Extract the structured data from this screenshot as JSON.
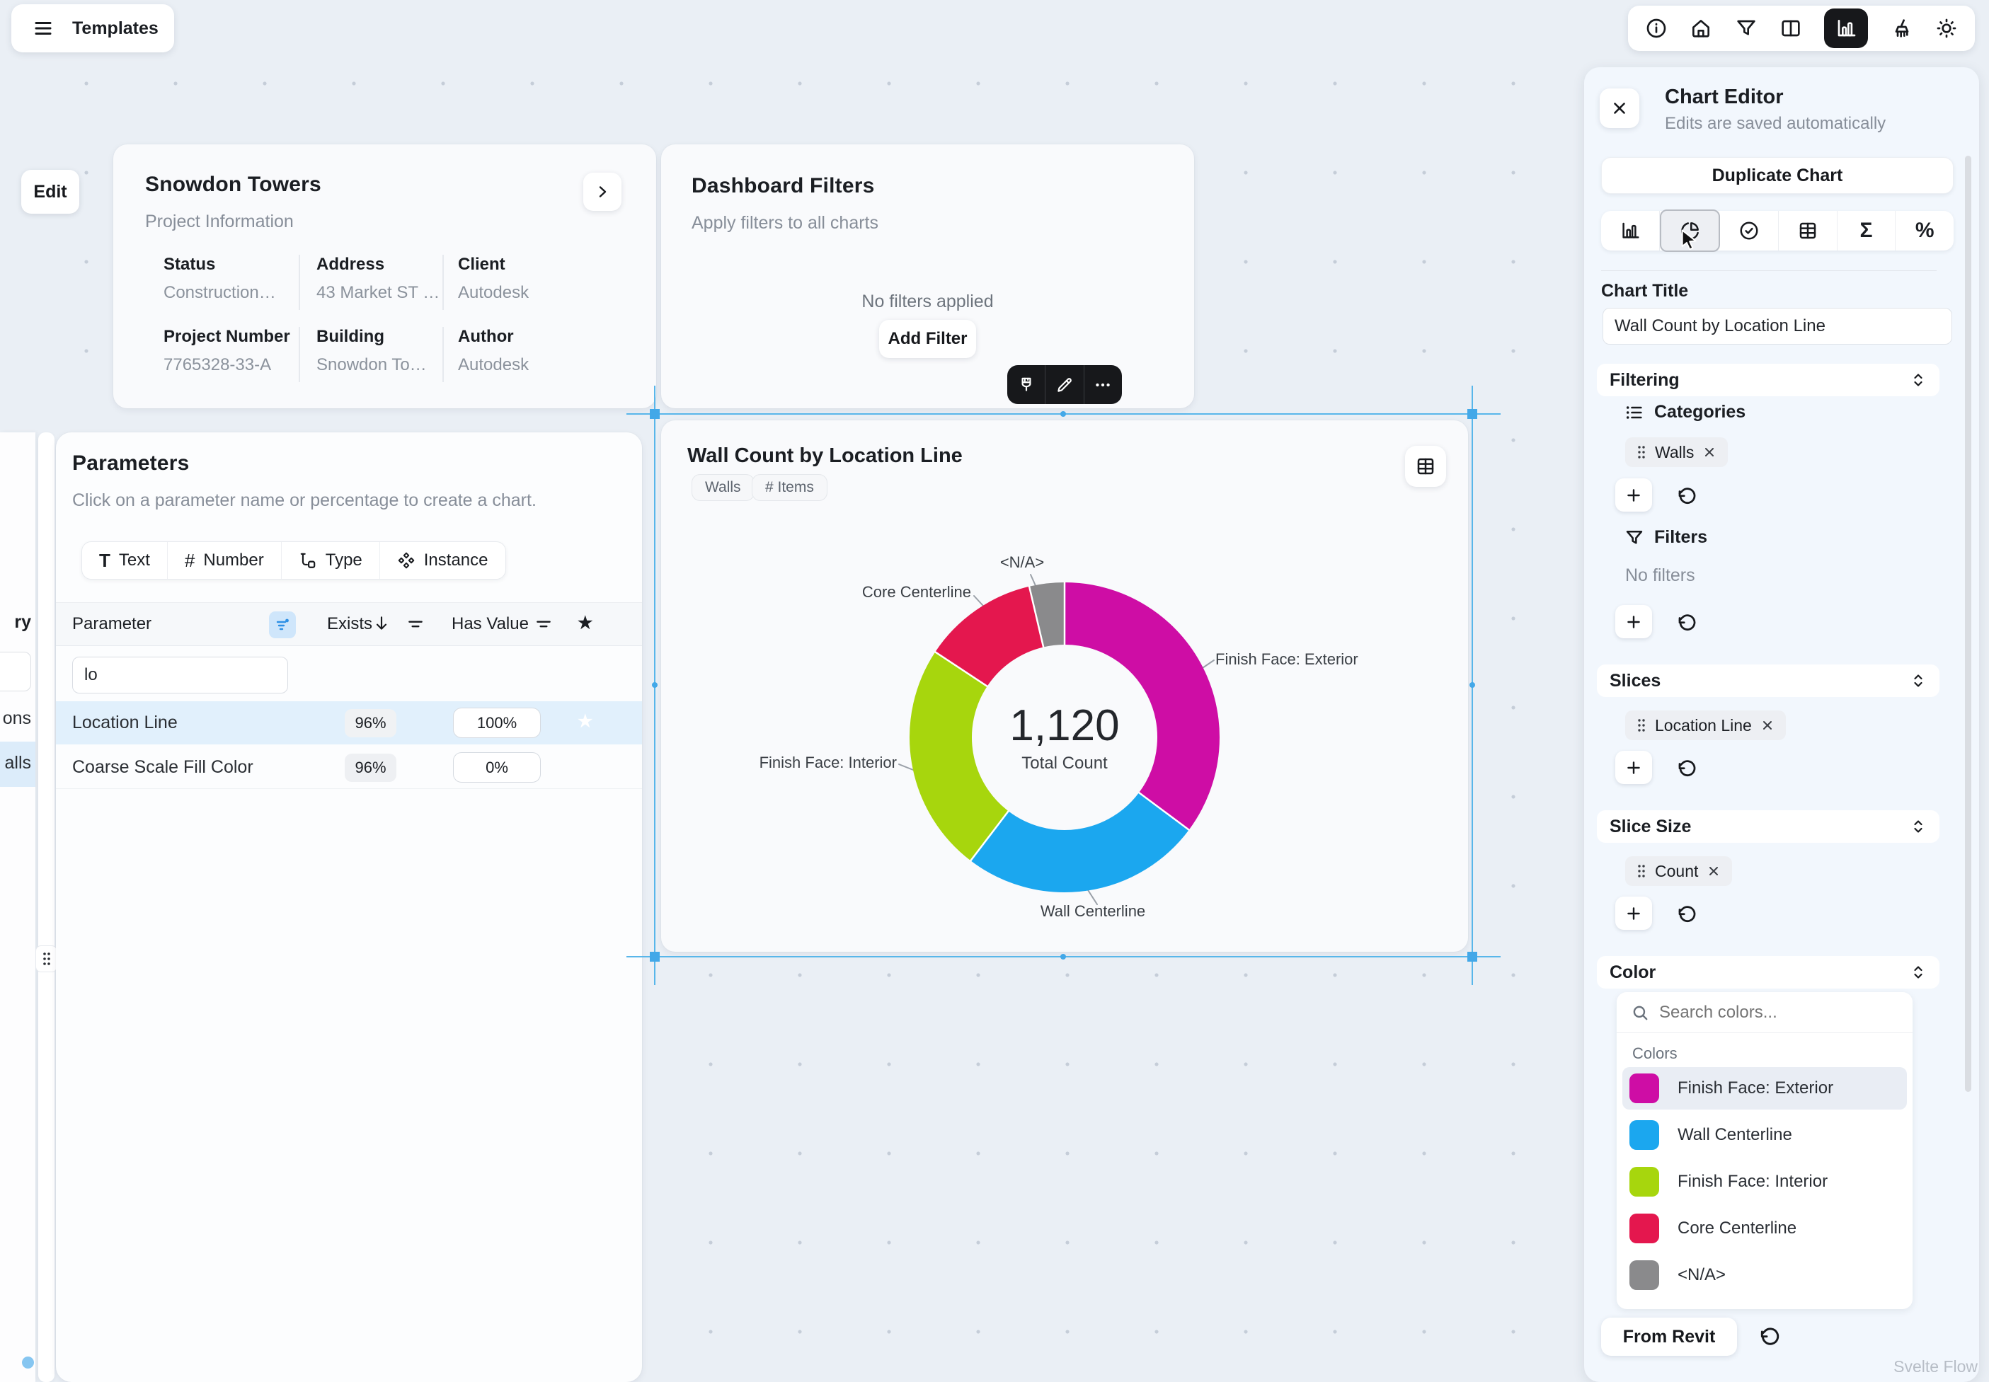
{
  "topbar": {
    "menu_label": "Templates",
    "right_icons": [
      "info-icon",
      "home-icon",
      "filter-icon",
      "columns-icon",
      "chart-icon",
      "broom-icon",
      "sun-icon"
    ],
    "active_icon": "chart-icon"
  },
  "canvas": {
    "edit_button_label": "Edit",
    "watermark": "Svelte Flow",
    "selection_color": "#58B6EA"
  },
  "project_card": {
    "title": "Snowdon Towers",
    "subtitle": "Project Information",
    "fields": [
      {
        "label": "Status",
        "value": "Construction…"
      },
      {
        "label": "Address",
        "value": "43 Market ST …"
      },
      {
        "label": "Client",
        "value": "Autodesk"
      },
      {
        "label": "Project Number",
        "value": "7765328-33-A"
      },
      {
        "label": "Building",
        "value": "Snowdon To…"
      },
      {
        "label": "Author",
        "value": "Autodesk"
      }
    ]
  },
  "filters_card": {
    "title": "Dashboard Filters",
    "subtitle": "Apply filters to all charts",
    "empty_text": "No filters applied",
    "add_button_label": "Add Filter",
    "toolbar_icons": [
      "paint-brush-icon",
      "pencil-icon",
      "ellipsis-icon"
    ]
  },
  "left_strip": {
    "header_fragment": "ry",
    "row_fragments": [
      "ons",
      "alls"
    ]
  },
  "parameters_panel": {
    "title": "Parameters",
    "subtitle": "Click on a parameter name or percentage to create a chart.",
    "tabs": [
      {
        "label": "Text"
      },
      {
        "label": "Number"
      },
      {
        "label": "Type"
      },
      {
        "label": "Instance"
      }
    ],
    "columns": {
      "parameter": "Parameter",
      "exists": "Exists",
      "has_value": "Has Value"
    },
    "search_value": "lo",
    "rows": [
      {
        "name": "Location Line",
        "exists": "96%",
        "has_value": "100%",
        "selected": true
      },
      {
        "name": "Coarse Scale Fill Color",
        "exists": "96%",
        "has_value": "0%",
        "selected": false
      }
    ]
  },
  "chart_card": {
    "title": "Wall Count by Location Line",
    "tags": [
      "Walls",
      "# Items"
    ],
    "corner_icon": "table-icon"
  },
  "chart_data": {
    "type": "pie",
    "donut": true,
    "title": "Wall Count by Location Line",
    "center_value": "1,120",
    "center_label": "Total Count",
    "total": 1120,
    "categories": [
      "Finish Face: Exterior",
      "Wall Centerline",
      "Finish Face: Interior",
      "Core Centerline",
      "<N/A>"
    ],
    "values": [
      394,
      282,
      268,
      135,
      41
    ],
    "colors": [
      "#CE0DA5",
      "#1BA7EF",
      "#A7D60D",
      "#E4174E",
      "#8A8A8C"
    ],
    "start_angle_deg": 0,
    "direction": "clockwise",
    "legend_position": "callout-labels"
  },
  "editor": {
    "title": "Chart Editor",
    "subtitle": "Edits are saved automatically",
    "duplicate_button_label": "Duplicate Chart",
    "tabs": [
      "bar-chart-icon",
      "pie-chart-icon",
      "check-circle-icon",
      "table-icon",
      "sigma-icon",
      "percent-icon"
    ],
    "active_tab": "pie-chart-icon",
    "chart_title_label": "Chart Title",
    "chart_title_value": "Wall Count by Location Line",
    "sections": {
      "filtering": {
        "label": "Filtering",
        "categories": {
          "label": "Categories",
          "chips": [
            {
              "label": "Walls"
            }
          ]
        },
        "filters": {
          "label": "Filters",
          "empty_text": "No filters"
        }
      },
      "slices": {
        "label": "Slices",
        "chips": [
          {
            "label": "Location Line"
          }
        ]
      },
      "slice_size": {
        "label": "Slice Size",
        "chips": [
          {
            "label": "Count"
          }
        ]
      },
      "color": {
        "label": "Color",
        "search_placeholder": "Search colors...",
        "group_label": "Colors",
        "items": [
          {
            "label": "Finish Face: Exterior",
            "color": "#CE0DA5",
            "selected": true
          },
          {
            "label": "Wall Centerline",
            "color": "#1BA7EF",
            "selected": false
          },
          {
            "label": "Finish Face: Interior",
            "color": "#A7D60D",
            "selected": false
          },
          {
            "label": "Core Centerline",
            "color": "#E4174E",
            "selected": false
          },
          {
            "label": "<N/A>",
            "color": "#8A8A8C",
            "selected": false
          }
        ],
        "from_revit_label": "From Revit"
      }
    }
  }
}
